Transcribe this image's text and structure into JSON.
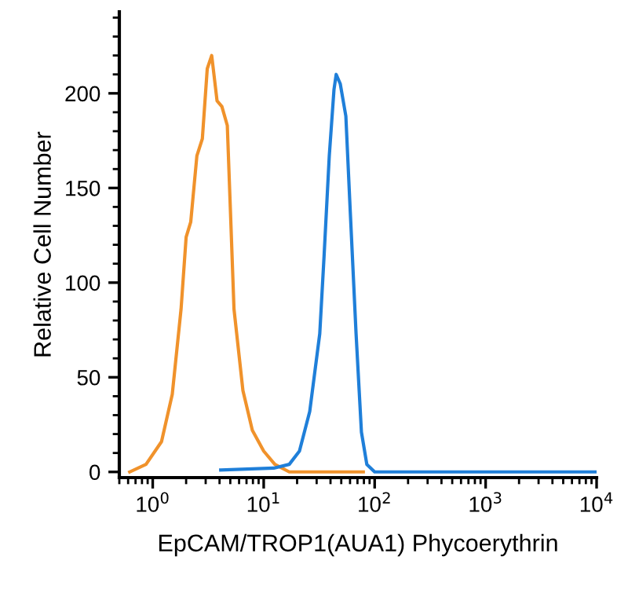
{
  "chart_data": {
    "type": "line",
    "xlabel": "EpCAM/TROP1(AUA1) Phycoerythrin",
    "ylabel": "Relative Cell Number",
    "log": "x",
    "xlim": [
      0.5,
      10000
    ],
    "ylim": [
      -3,
      243
    ],
    "xticks": [
      {
        "value": 1,
        "label": "10$^{0}$"
      },
      {
        "value": 10,
        "label": "10$^{1}$"
      },
      {
        "value": 100,
        "label": "10$^{2}$"
      },
      {
        "value": 1000,
        "label": "10$^{3}$"
      },
      {
        "value": 10000,
        "label": "10$^{4}$"
      }
    ],
    "yticks": [
      0,
      50,
      100,
      150,
      200
    ],
    "grid": false,
    "marker": "none",
    "line_style": "solid",
    "series": [
      {
        "color": "#f0922b",
        "x": [
          0.62,
          0.87,
          1.2,
          1.5,
          1.8,
          2.0,
          2.2,
          2.5,
          2.8,
          3.1,
          3.4,
          3.8,
          4.2,
          4.7,
          5.0,
          5.4,
          6.5,
          7.9,
          10,
          12.6,
          17,
          79
        ],
        "values": [
          0,
          4,
          16,
          41,
          86,
          124,
          132,
          167,
          176,
          213,
          220,
          196,
          193,
          183,
          140,
          86,
          43,
          22,
          11,
          4,
          0,
          0
        ]
      },
      {
        "color": "#1f7fd9",
        "x": [
          4.1,
          12.3,
          17,
          21,
          26,
          32,
          35,
          39,
          43,
          45,
          49,
          55,
          60,
          68,
          76,
          85,
          100,
          10000
        ],
        "values": [
          1,
          2,
          4,
          11,
          32,
          73,
          114,
          167,
          202,
          210,
          205,
          188,
          140,
          73,
          21,
          4,
          0,
          0
        ]
      }
    ]
  }
}
